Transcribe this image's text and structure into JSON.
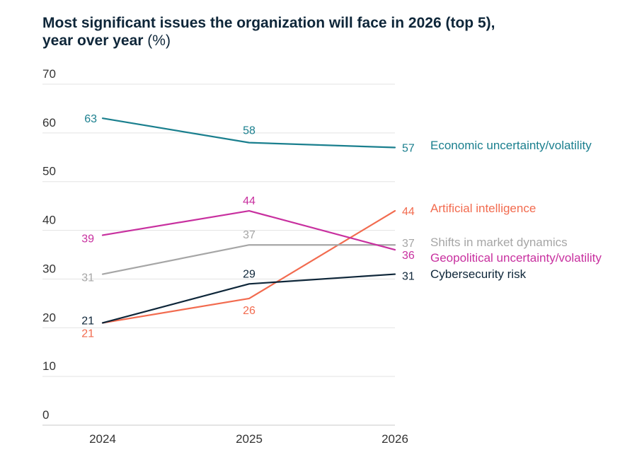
{
  "chart_data": {
    "type": "line",
    "title": "Most significant issues the organization will face in 2026 (top 5),",
    "title_line2": "year over year",
    "title_unit": "(%)",
    "x": [
      "2024",
      "2025",
      "2026"
    ],
    "ylim": [
      0,
      70
    ],
    "yticks": [
      "0",
      "10",
      "20",
      "30",
      "40",
      "50",
      "60",
      "70"
    ],
    "grid": true,
    "legend": "direct labels at line ends (right)",
    "series": [
      {
        "name": "Economic uncertainty/volatility",
        "values": [
          63,
          58,
          57
        ],
        "color": "#1a7f8e",
        "labels": [
          "63",
          "58",
          "57"
        ]
      },
      {
        "name": "Artificial intelligence",
        "values": [
          21,
          26,
          44
        ],
        "color": "#f26b4f",
        "labels": [
          "21",
          "26",
          "44"
        ]
      },
      {
        "name": "Shifts in market dynamics",
        "values": [
          31,
          37,
          37
        ],
        "color": "#a6a6a6",
        "labels": [
          "31",
          "37",
          "37"
        ]
      },
      {
        "name": "Geopolitical uncertainty/volatility",
        "values": [
          39,
          44,
          36
        ],
        "color": "#c8309f",
        "labels": [
          "39",
          "44",
          "36"
        ]
      },
      {
        "name": "Cybersecurity risk",
        "values": [
          21,
          29,
          31
        ],
        "color": "#0e2639",
        "labels": [
          "21",
          "29",
          "31"
        ]
      }
    ]
  }
}
